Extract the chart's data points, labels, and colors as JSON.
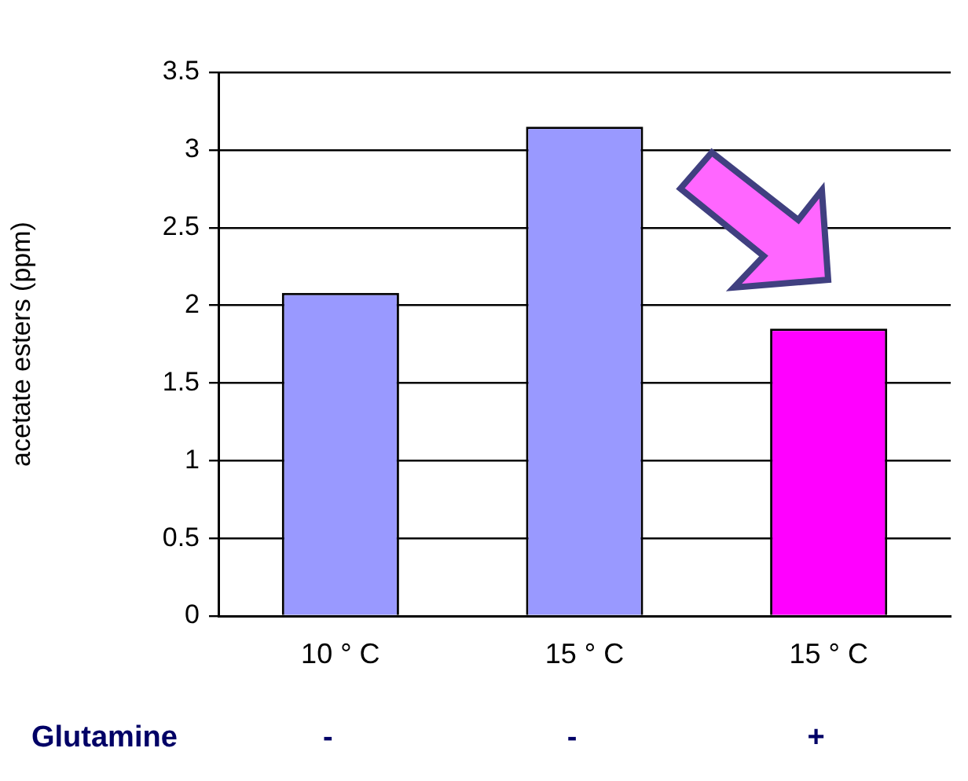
{
  "chart_data": {
    "type": "bar",
    "ylabel": "acetate esters (ppm)",
    "categories": [
      "10 ° C",
      "15 ° C",
      "15 ° C"
    ],
    "values": [
      2.08,
      3.15,
      1.85
    ],
    "colors": [
      "#9999ff",
      "#9999ff",
      "#ff00ff"
    ],
    "ylim": [
      0,
      3.5
    ],
    "yticks": [
      0,
      0.5,
      1,
      1.5,
      2,
      2.5,
      3,
      3.5
    ],
    "grid": "y",
    "annotations": [
      "Glutamine",
      "-",
      "-",
      "+"
    ]
  }
}
